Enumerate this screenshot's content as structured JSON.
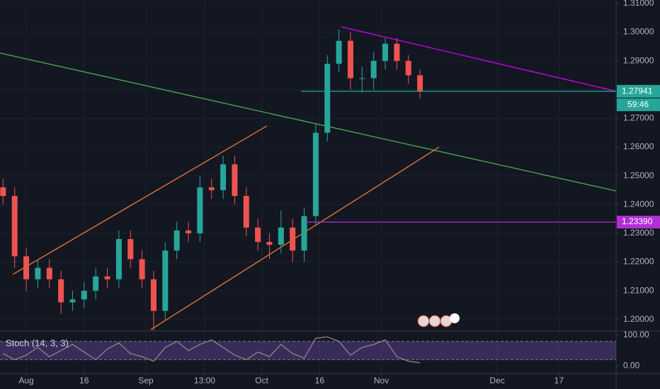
{
  "chart_data": {
    "type": "candlestick",
    "x": [
      -6,
      -3,
      0,
      3,
      6,
      9,
      12,
      15,
      18,
      21,
      24,
      27,
      30,
      33,
      36,
      39,
      42,
      45,
      48,
      51,
      54,
      57,
      60,
      63,
      66,
      69,
      72,
      75,
      78,
      81,
      84,
      87,
      90,
      93,
      96,
      99,
      102
    ],
    "open": [
      1.246,
      1.243,
      1.222,
      1.214,
      1.218,
      1.214,
      1.206,
      1.207,
      1.21,
      1.215,
      1.214,
      1.228,
      1.221,
      1.214,
      1.203,
      1.224,
      1.231,
      1.23,
      1.246,
      1.245,
      1.254,
      1.243,
      1.232,
      1.227,
      1.226,
      1.232,
      1.224,
      1.236,
      1.265,
      1.289,
      1.297,
      1.284,
      1.284,
      1.29,
      1.296,
      1.29,
      1.285
    ],
    "high": [
      1.249,
      1.246,
      1.225,
      1.221,
      1.221,
      1.217,
      1.21,
      1.213,
      1.218,
      1.218,
      1.231,
      1.231,
      1.224,
      1.217,
      1.227,
      1.234,
      1.234,
      1.25,
      1.249,
      1.257,
      1.257,
      1.246,
      1.235,
      1.23,
      1.238,
      1.235,
      1.239,
      1.268,
      1.292,
      1.301,
      1.3,
      1.288,
      1.293,
      1.298,
      1.298,
      1.292,
      1.287
    ],
    "low": [
      1.24,
      1.218,
      1.21,
      1.211,
      1.211,
      1.202,
      1.203,
      1.204,
      1.207,
      1.211,
      1.211,
      1.218,
      1.211,
      1.196,
      1.2,
      1.221,
      1.227,
      1.227,
      1.242,
      1.242,
      1.24,
      1.229,
      1.224,
      1.221,
      1.223,
      1.22,
      1.22,
      1.233,
      1.262,
      1.286,
      1.28,
      1.279,
      1.28,
      1.287,
      1.287,
      1.282,
      1.277
    ],
    "close": [
      1.243,
      1.222,
      1.214,
      1.218,
      1.214,
      1.206,
      1.207,
      1.21,
      1.215,
      1.214,
      1.228,
      1.221,
      1.214,
      1.203,
      1.224,
      1.231,
      1.23,
      1.246,
      1.245,
      1.254,
      1.243,
      1.232,
      1.227,
      1.226,
      1.232,
      1.224,
      1.236,
      1.265,
      1.289,
      1.297,
      1.284,
      1.284,
      1.29,
      1.296,
      1.29,
      1.285,
      1.2794
    ],
    "up_color": "#26a69a",
    "down_color": "#ef5350",
    "xlim": [
      -6.8,
      152.8
    ],
    "ylim": [
      1.196,
      1.3112
    ],
    "xticks": [
      {
        "value": 0,
        "label": "Aug"
      },
      {
        "value": 15,
        "label": "16"
      },
      {
        "value": 31,
        "label": "Sep"
      },
      {
        "value": 46.2,
        "label": "13:00"
      },
      {
        "value": 61,
        "label": "Oct"
      },
      {
        "value": 76,
        "label": "16"
      },
      {
        "value": 92,
        "label": "Nov"
      },
      {
        "value": 122,
        "label": "Dec"
      },
      {
        "value": 138,
        "label": "17"
      }
    ],
    "yticks": [
      {
        "value": 1.2,
        "label": "1.20000"
      },
      {
        "value": 1.21,
        "label": "1.21000"
      },
      {
        "value": 1.22,
        "label": "1.22000"
      },
      {
        "value": 1.23,
        "label": "1.23000"
      },
      {
        "value": 1.24,
        "label": "1.24000"
      },
      {
        "value": 1.25,
        "label": "1.25000"
      },
      {
        "value": 1.26,
        "label": "1.26000"
      },
      {
        "value": 1.27,
        "label": "1.27000"
      },
      {
        "value": 1.28,
        "label": "1.28000"
      },
      {
        "value": 1.29,
        "label": "1.29000"
      },
      {
        "value": 1.3,
        "label": "1.30000"
      },
      {
        "value": 1.31,
        "label": "1.31000"
      }
    ],
    "grid": true,
    "current_price": {
      "value": 1.27941,
      "label": "1.27941",
      "countdown": "59:46",
      "color": "#26a69a"
    },
    "alert_line": {
      "value": 1.2339,
      "label": "1.23390",
      "color": "#b12fd4"
    },
    "indicator": {
      "title": "Stoch (14, 3, 3)",
      "color": "#a1887f",
      "band_color": "#7e57c2",
      "ylim": [
        -25,
        114
      ],
      "band": [
        20,
        80
      ],
      "yticks": [
        {
          "value": 100,
          "label": "100.00"
        },
        {
          "value": 0,
          "label": "0.00"
        }
      ],
      "values": [
        40,
        20,
        35,
        60,
        30,
        50,
        70,
        45,
        20,
        55,
        75,
        40,
        30,
        15,
        60,
        80,
        50,
        70,
        85,
        60,
        35,
        20,
        45,
        30,
        70,
        40,
        25,
        90,
        95,
        80,
        35,
        60,
        70,
        85,
        30,
        15,
        10
      ]
    }
  }
}
